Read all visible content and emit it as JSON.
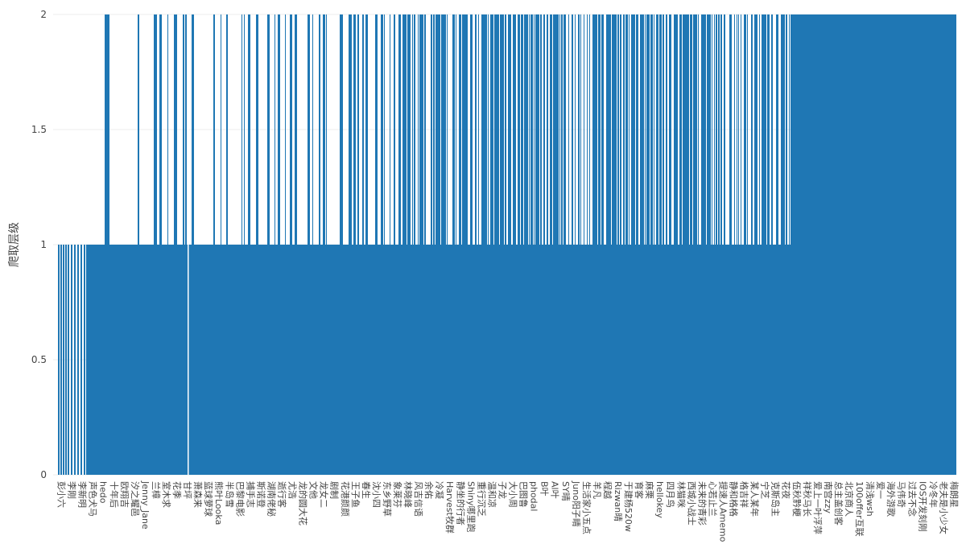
{
  "chart_data": {
    "type": "bar",
    "ylabel": "爬取层级",
    "xlabel": "",
    "ylim": [
      0,
      2
    ],
    "yticks": [
      "0",
      "0.5",
      "1",
      "1.5",
      "2"
    ],
    "grid": true,
    "bar_color": "#1f77b4",
    "categories": [
      "彭小六",
      "李刚",
      "李新明",
      "声色犬马",
      "hedo",
      "十年后",
      "欧翔吉",
      "汐之耀邑",
      "Jenny_Jane",
      "兰樟",
      "室木求",
      "花季",
      "甘坪",
      "萧森来",
      "蓝球萝球",
      "熊叶Looka",
      "半岛雪",
      "巴黎电影",
      "捕手志",
      "斯诺登",
      "湖南佬秘",
      "逝行客",
      "尤浩",
      "龙的圆大花",
      "文他",
      "龙女二",
      "剧制",
      "花港颜颜",
      "王子鱼",
      "春生",
      "沈小四",
      "东乡野草",
      "象莱芬",
      "林晓峰",
      "风吉信语",
      "余佑",
      "冷凝",
      "Harvest牧群",
      "静坐的行者",
      "Shiny哪里跑",
      "重行沉乏",
      "温和凉",
      "子龙",
      "大小周",
      "巴图鲁",
      "phodal",
      "B叶",
      "Al叶",
      "SY晴",
      "Juno阳子睛",
      "生活家小五点",
      "羊凡",
      "程越",
      "Rizwan晴",
      "于建杨520w",
      "育客",
      "麻栗",
      "hellokey",
      "四月鸟",
      "林猫咪",
      "西城小战士",
      "未来的青彩",
      "心若止兰",
      "提速人Amemo",
      "静和格格",
      "格吉祥",
      "某人某年",
      "宁芝",
      "克斯岛主",
      "花夜",
      "伍秋黔梗",
      "祥秋马长",
      "爱上一叶浮萍",
      "南宫zzy",
      "总主盖创客",
      "北京商人",
      "100offer互联",
      "清浅wsh",
      "爱一",
      "海外游歌",
      "马伟奇",
      "过去不念",
      "IOS开发刻刚",
      "冷冬年",
      "老夫是小少女",
      "梅朗星"
    ]
  }
}
